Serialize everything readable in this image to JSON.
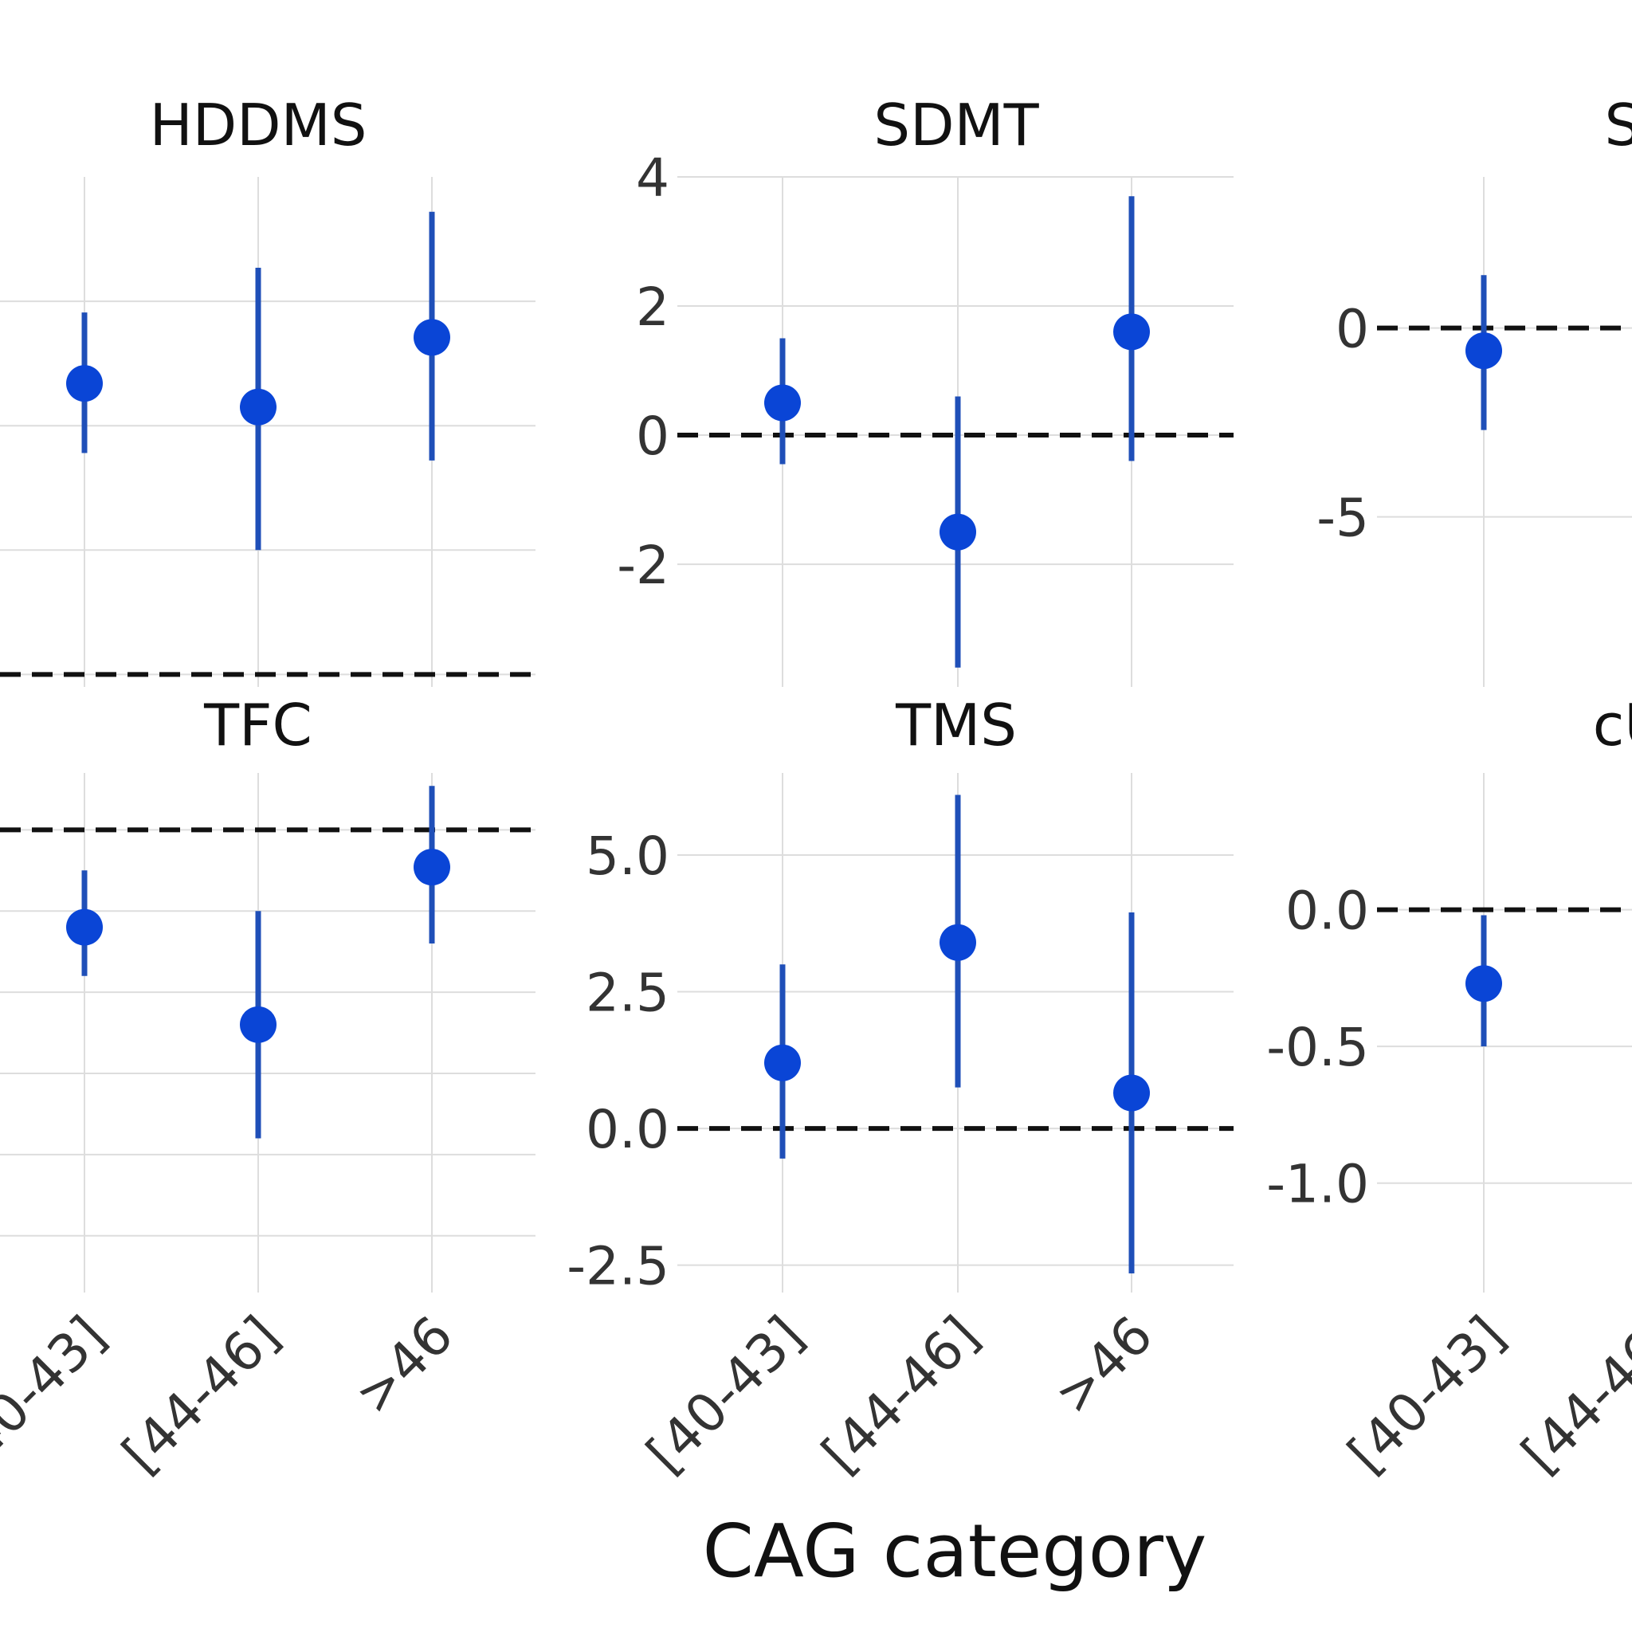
{
  "chart_data": {
    "type": "errorbar",
    "xlabel": "CAG category",
    "categories": [
      "[40-43]",
      "[44-46]",
      ">46"
    ],
    "colors": {
      "point": "#0a45d6",
      "bar": "#1f4fb8",
      "ref_line": "#111111",
      "grid": "#dddddd"
    },
    "panels": [
      {
        "title": "HDDMS",
        "show_yticks": false,
        "ylim": [
          -0.1,
          4.0
        ],
        "yticks": [
          0,
          1,
          2,
          3
        ],
        "ref_line": 0,
        "points": [
          {
            "category": "[40-43]",
            "estimate": 2.34,
            "lower": 1.78,
            "upper": 2.91
          },
          {
            "category": "[44-46]",
            "estimate": 2.15,
            "lower": 1.0,
            "upper": 3.27
          },
          {
            "category": ">46",
            "estimate": 2.71,
            "lower": 1.72,
            "upper": 3.72
          }
        ]
      },
      {
        "title": "SDMT",
        "show_yticks": true,
        "ylim": [
          -3.9,
          4.0
        ],
        "yticks": [
          -2,
          0,
          2,
          4
        ],
        "ytick_labels": [
          "-2",
          "0",
          "2",
          "4"
        ],
        "ref_line": 0,
        "points": [
          {
            "category": "[40-43]",
            "estimate": 0.5,
            "lower": -0.45,
            "upper": 1.5
          },
          {
            "category": "[44-46]",
            "estimate": -1.5,
            "lower": -3.6,
            "upper": 0.6
          },
          {
            "category": ">46",
            "estimate": 1.6,
            "lower": -0.4,
            "upper": 3.7
          }
        ]
      },
      {
        "title": "SW",
        "show_yticks": true,
        "ylim": [
          -9.5,
          4.0
        ],
        "yticks": [
          -5,
          0
        ],
        "ytick_labels": [
          "-5",
          "0"
        ],
        "ref_line": 0,
        "points": [
          {
            "category": "[40-43]",
            "estimate": -0.6,
            "lower": -2.7,
            "upper": 1.4
          }
        ]
      },
      {
        "title": "TFC",
        "show_yticks": false,
        "ylim": [
          -2.85,
          0.35
        ],
        "yticks": [
          -2.5,
          -2.0,
          -1.5,
          -1.0,
          -0.5,
          0.0
        ],
        "ref_line": 0,
        "points": [
          {
            "category": "[40-43]",
            "estimate": -0.6,
            "lower": -0.9,
            "upper": -0.25
          },
          {
            "category": "[44-46]",
            "estimate": -1.2,
            "lower": -1.9,
            "upper": -0.5
          },
          {
            "category": ">46",
            "estimate": -0.23,
            "lower": -0.7,
            "upper": 0.27
          }
        ]
      },
      {
        "title": "TMS",
        "show_yticks": true,
        "ylim": [
          -3.0,
          6.5
        ],
        "yticks": [
          -2.5,
          0.0,
          2.5,
          5.0
        ],
        "ytick_labels": [
          "-2.5",
          "0.0",
          "2.5",
          "5.0"
        ],
        "ref_line": 0,
        "points": [
          {
            "category": "[40-43]",
            "estimate": 1.2,
            "lower": -0.55,
            "upper": 3.0
          },
          {
            "category": "[44-46]",
            "estimate": 3.4,
            "lower": 0.75,
            "upper": 6.1
          },
          {
            "category": ">46",
            "estimate": 0.65,
            "lower": -2.65,
            "upper": 3.95
          }
        ]
      },
      {
        "title": "cUH",
        "show_yticks": true,
        "ylim": [
          -1.4,
          0.5
        ],
        "yticks": [
          -1.0,
          -0.5,
          0.0
        ],
        "ytick_labels": [
          "-1.0",
          "-0.5",
          "0.0"
        ],
        "ref_line": 0,
        "points": [
          {
            "category": "[40-43]",
            "estimate": -0.27,
            "lower": -0.5,
            "upper": -0.02
          }
        ]
      }
    ]
  }
}
